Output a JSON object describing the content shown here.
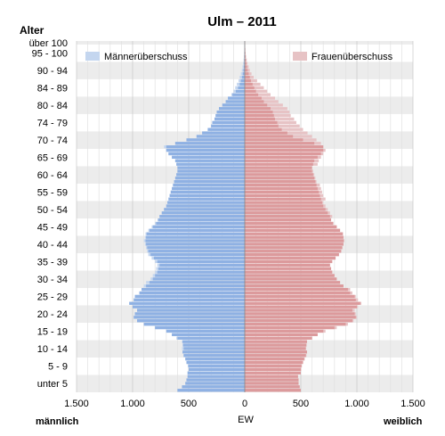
{
  "chart_data": {
    "type": "bar",
    "orientation": "horizontal",
    "subtype": "population-pyramid",
    "title": "Ulm – 2011",
    "y_axis_title": "Alter",
    "xlabel": "EW",
    "left_label": "männlich",
    "right_label": "weiblich",
    "legend": [
      {
        "name": "Männerüberschuss",
        "color": "#c4d6ef"
      },
      {
        "name": "Frauenüberschuss",
        "color": "#e7c3c5"
      }
    ],
    "x_ticks": [
      {
        "value": -1500,
        "label": "1.500"
      },
      {
        "value": -1000,
        "label": "1.000"
      },
      {
        "value": -500,
        "label": "500"
      },
      {
        "value": 0,
        "label": "0"
      },
      {
        "value": 500,
        "label": "500"
      },
      {
        "value": 1000,
        "label": "1.000"
      },
      {
        "value": 1500,
        "label": "1.500"
      }
    ],
    "xlim": [
      -1500,
      1500
    ],
    "ages": [
      0,
      1,
      2,
      3,
      4,
      5,
      6,
      7,
      8,
      9,
      10,
      11,
      12,
      13,
      14,
      15,
      16,
      17,
      18,
      19,
      20,
      21,
      22,
      23,
      24,
      25,
      26,
      27,
      28,
      29,
      30,
      31,
      32,
      33,
      34,
      35,
      36,
      37,
      38,
      39,
      40,
      41,
      42,
      43,
      44,
      45,
      46,
      47,
      48,
      49,
      50,
      51,
      52,
      53,
      54,
      55,
      56,
      57,
      58,
      59,
      60,
      61,
      62,
      63,
      64,
      65,
      66,
      67,
      68,
      69,
      70,
      71,
      72,
      73,
      74,
      75,
      76,
      77,
      78,
      79,
      80,
      81,
      82,
      83,
      84,
      85,
      86,
      87,
      88,
      89,
      90,
      91,
      92,
      93,
      94,
      95,
      96,
      97,
      98,
      99,
      100
    ],
    "age_group_labels": [
      "unter 5",
      "5 - 9",
      "10 - 14",
      "15 - 19",
      "20 - 24",
      "25 - 29",
      "30 - 34",
      "35 - 39",
      "40 - 44",
      "45 - 49",
      "50 - 54",
      "55 - 59",
      "60 - 64",
      "65 - 69",
      "70 - 74",
      "74 - 79",
      "80 - 84",
      "84 - 89",
      "90 - 94",
      "95 - 100",
      "über 100"
    ],
    "male": [
      600,
      560,
      530,
      520,
      510,
      510,
      500,
      505,
      520,
      530,
      545,
      555,
      560,
      555,
      560,
      610,
      650,
      700,
      800,
      900,
      960,
      990,
      980,
      960,
      1000,
      1030,
      990,
      980,
      940,
      920,
      900,
      880,
      840,
      820,
      800,
      790,
      780,
      800,
      830,
      860,
      870,
      880,
      890,
      900,
      890,
      885,
      860,
      830,
      800,
      780,
      760,
      740,
      720,
      700,
      690,
      680,
      670,
      660,
      650,
      640,
      630,
      620,
      610,
      600,
      600,
      610,
      620,
      650,
      680,
      700,
      720,
      620,
      520,
      430,
      380,
      330,
      300,
      290,
      270,
      260,
      250,
      230,
      200,
      170,
      150,
      120,
      100,
      85,
      70,
      55,
      45,
      35,
      26,
      20,
      14,
      10,
      7,
      5,
      3,
      2,
      2
    ],
    "female": [
      500,
      490,
      480,
      480,
      475,
      500,
      505,
      510,
      520,
      535,
      550,
      555,
      545,
      550,
      555,
      600,
      650,
      720,
      820,
      920,
      970,
      1000,
      990,
      980,
      1010,
      1040,
      1010,
      990,
      960,
      940,
      880,
      850,
      820,
      800,
      780,
      770,
      760,
      780,
      810,
      840,
      860,
      870,
      880,
      885,
      880,
      875,
      850,
      820,
      790,
      770,
      780,
      760,
      740,
      720,
      700,
      720,
      700,
      690,
      680,
      670,
      640,
      630,
      620,
      610,
      600,
      650,
      660,
      680,
      700,
      720,
      700,
      680,
      640,
      600,
      560,
      520,
      490,
      460,
      440,
      410,
      400,
      380,
      340,
      300,
      270,
      230,
      200,
      170,
      140,
      110,
      80,
      60,
      45,
      35,
      25,
      18,
      12,
      8,
      6,
      4,
      3
    ],
    "baseline_male": [
      600,
      560,
      530,
      520,
      510,
      510,
      500,
      505,
      520,
      530,
      545,
      555,
      545,
      550,
      555,
      600,
      650,
      700,
      800,
      900,
      960,
      990,
      980,
      960,
      1000,
      1030,
      990,
      980,
      940,
      920,
      880,
      850,
      820,
      800,
      780,
      770,
      760,
      780,
      810,
      840,
      860,
      870,
      880,
      885,
      880,
      875,
      850,
      820,
      790,
      770,
      760,
      740,
      720,
      700,
      690,
      680,
      670,
      660,
      650,
      640,
      630,
      620,
      610,
      600,
      600,
      610,
      620,
      650,
      680,
      700,
      700,
      620,
      520,
      430,
      380,
      330,
      300,
      290,
      270,
      260,
      250,
      230,
      200,
      170,
      150,
      110,
      80,
      60,
      45,
      35,
      25,
      18,
      12,
      8,
      6,
      4,
      3,
      3,
      2,
      2,
      2
    ]
  }
}
